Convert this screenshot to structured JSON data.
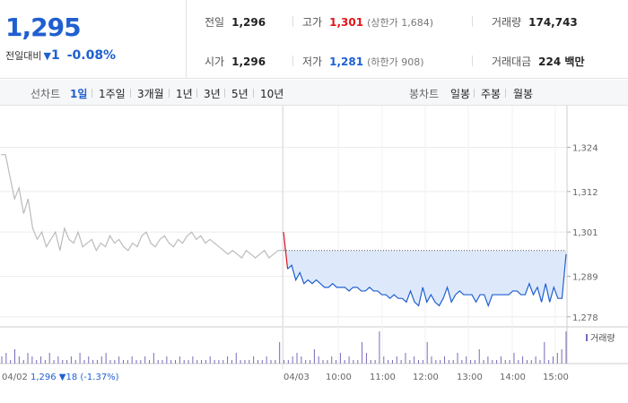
{
  "summary": {
    "price": "1,295",
    "change_label": "전일대비",
    "change_arrow": "▼",
    "change_amount": "1",
    "change_pct": "-0.08%",
    "prev_close": {
      "label": "전일",
      "value": "1,296"
    },
    "open": {
      "label": "시가",
      "value": "1,296"
    },
    "high": {
      "label": "고가",
      "value": "1,301",
      "sub": "(상한가 1,684)"
    },
    "low": {
      "label": "저가",
      "value": "1,281",
      "sub": "(하한가 908)"
    },
    "volume": {
      "label": "거래량",
      "value": "174,743"
    },
    "amount": {
      "label": "거래대금",
      "value": "224 백만"
    }
  },
  "tabs": {
    "line_label": "선차트",
    "line_tabs": [
      "1일",
      "1주일",
      "3개월",
      "1년",
      "3년",
      "5년",
      "10년"
    ],
    "candle_label": "봉차트",
    "candle_tabs": [
      "일봉",
      "주봉",
      "월봉"
    ]
  },
  "colors": {
    "up": "#e2131b",
    "down": "#1f5fd1",
    "prev_line": "#bbbbbb",
    "area_fill": "#dde9fb",
    "volume": "#7b68b8"
  },
  "chart_data": {
    "type": "line",
    "yticks": [
      "1,324",
      "1,312",
      "1,301",
      "1,289",
      "1,278"
    ],
    "ylim": [
      1276,
      1328
    ],
    "prev_close_ref": 1296,
    "xlabels": [
      "04/02",
      "04/03",
      "10:00",
      "11:00",
      "12:00",
      "13:00",
      "14:00",
      "15:00"
    ],
    "footer": "1,296 ▼18 (-1.37%)",
    "volume_legend": "거래량",
    "series": [
      {
        "day": "04/02",
        "values": [
          1322,
          1322,
          1316,
          1310,
          1313,
          1306,
          1310,
          1302,
          1299,
          1301,
          1297,
          1299,
          1301,
          1296,
          1302,
          1299,
          1298,
          1301,
          1297,
          1298,
          1299,
          1296,
          1298,
          1297,
          1300,
          1298,
          1299,
          1297,
          1296,
          1298,
          1297,
          1300,
          1301,
          1298,
          1297,
          1299,
          1300,
          1298,
          1297,
          1299,
          1298,
          1300,
          1301,
          1299,
          1300,
          1298,
          1299,
          1298,
          1297,
          1296,
          1295,
          1296,
          1295,
          1294,
          1296,
          1295,
          1294,
          1295,
          1296,
          1294,
          1295,
          1296,
          1296
        ]
      },
      {
        "day": "04/03",
        "values": [
          1301,
          1291,
          1292,
          1288,
          1290,
          1287,
          1288,
          1287,
          1288,
          1287,
          1286,
          1286,
          1287,
          1286,
          1286,
          1286,
          1285,
          1286,
          1286,
          1285,
          1285,
          1286,
          1285,
          1285,
          1284,
          1284,
          1283,
          1284,
          1283,
          1283,
          1282,
          1285,
          1282,
          1281,
          1286,
          1282,
          1284,
          1282,
          1281,
          1283,
          1286,
          1282,
          1284,
          1285,
          1284,
          1284,
          1284,
          1282,
          1284,
          1284,
          1281,
          1284,
          1284,
          1284,
          1284,
          1284,
          1285,
          1285,
          1284,
          1284,
          1287,
          1284,
          1286,
          1282,
          1287,
          1282,
          1286,
          1283,
          1283,
          1295
        ]
      }
    ],
    "volume": [
      2,
      3,
      1,
      4,
      2,
      1,
      3,
      2,
      1,
      2,
      1,
      3,
      1,
      2,
      1,
      1,
      2,
      1,
      3,
      1,
      2,
      1,
      1,
      2,
      3,
      1,
      1,
      2,
      1,
      1,
      2,
      1,
      1,
      2,
      1,
      3,
      1,
      1,
      2,
      1,
      1,
      2,
      1,
      1,
      2,
      1,
      1,
      1,
      2,
      1,
      1,
      1,
      2,
      1,
      3,
      1,
      1,
      1,
      2,
      1,
      1,
      2,
      1,
      1,
      6,
      1,
      1,
      2,
      3,
      2,
      1,
      1,
      4,
      2,
      1,
      1,
      2,
      1,
      3,
      1,
      2,
      1,
      1,
      6,
      3,
      1,
      1,
      9,
      2,
      1,
      1,
      2,
      1,
      3,
      1,
      2,
      1,
      1,
      6,
      2,
      1,
      1,
      2,
      1,
      1,
      3,
      1,
      2,
      1,
      1,
      4,
      1,
      2,
      1,
      1,
      2,
      1,
      1,
      3,
      1,
      2,
      1,
      1,
      2,
      1,
      6,
      1,
      2,
      3,
      4,
      9
    ]
  }
}
